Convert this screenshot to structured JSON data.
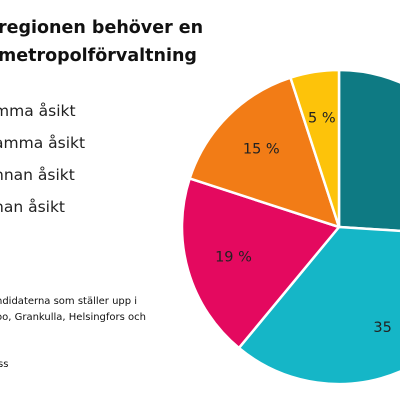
{
  "title_lines": [
    "regionen behöver en",
    "metropolförvaltning"
  ],
  "legend_lines": [
    "mma åsikt",
    "amma åsikt",
    "nnan åsikt",
    "nan åsikt"
  ],
  "note_lines": [
    "ndidaterna som ställer upp i",
    "oo, Grankulla, Helsingfors och"
  ],
  "source": "ss",
  "chart_data": {
    "type": "pie",
    "title": "regionen behöver en metropolförvaltning",
    "start_angle_deg": 0,
    "direction": "clockwise",
    "slices": [
      {
        "value": 26,
        "label": "",
        "color": "#0e7a83"
      },
      {
        "value": 35,
        "label": "35",
        "color": "#15b6c7"
      },
      {
        "value": 19,
        "label": "19 %",
        "color": "#e4095f"
      },
      {
        "value": 15,
        "label": "15 %",
        "color": "#f27c16"
      },
      {
        "value": 5,
        "label": "5 %",
        "color": "#fdc30a"
      }
    ]
  }
}
